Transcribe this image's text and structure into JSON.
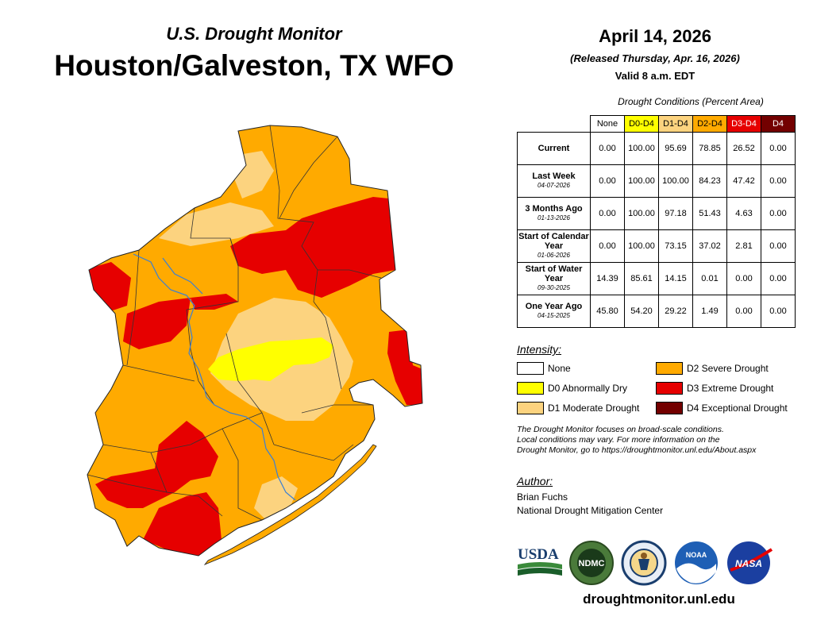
{
  "header": {
    "subtitle": "U.S. Drought Monitor",
    "title": "Houston/Galveston, TX WFO",
    "date": "April 14, 2026",
    "released": "(Released Thursday, Apr. 16, 2026)",
    "valid": "Valid 8 a.m. EDT"
  },
  "table": {
    "caption": "Drought Conditions (Percent Area)",
    "columns": [
      "None",
      "D0-D4",
      "D1-D4",
      "D2-D4",
      "D3-D4",
      "D4"
    ],
    "column_colors": [
      "#ffffff",
      "#ffff00",
      "#fcd37f",
      "#ffaa00",
      "#e60000",
      "#730000"
    ],
    "rows": [
      {
        "label": "Current",
        "date": "",
        "values": [
          "0.00",
          "100.00",
          "95.69",
          "78.85",
          "26.52",
          "0.00"
        ]
      },
      {
        "label": "Last Week",
        "date": "04-07-2026",
        "values": [
          "0.00",
          "100.00",
          "100.00",
          "84.23",
          "47.42",
          "0.00"
        ]
      },
      {
        "label": "3 Months Ago",
        "date": "01-13-2026",
        "values": [
          "0.00",
          "100.00",
          "97.18",
          "51.43",
          "4.63",
          "0.00"
        ]
      },
      {
        "label": "Start of Calendar Year",
        "date": "01-06-2026",
        "values": [
          "0.00",
          "100.00",
          "73.15",
          "37.02",
          "2.81",
          "0.00"
        ]
      },
      {
        "label": "Start of Water Year",
        "date": "09-30-2025",
        "values": [
          "14.39",
          "85.61",
          "14.15",
          "0.01",
          "0.00",
          "0.00"
        ]
      },
      {
        "label": "One Year Ago",
        "date": "04-15-2025",
        "values": [
          "45.80",
          "54.20",
          "29.22",
          "1.49",
          "0.00",
          "0.00"
        ]
      }
    ]
  },
  "legend": {
    "heading": "Intensity:",
    "items": [
      {
        "label": "None",
        "color": "#ffffff"
      },
      {
        "label": "D0 Abnormally Dry",
        "color": "#ffff00"
      },
      {
        "label": "D1 Moderate Drought",
        "color": "#fcd37f"
      },
      {
        "label": "D2 Severe Drought",
        "color": "#ffaa00"
      },
      {
        "label": "D3 Extreme Drought",
        "color": "#e60000"
      },
      {
        "label": "D4 Exceptional Drought",
        "color": "#730000"
      }
    ]
  },
  "note": {
    "line1": "The Drought Monitor focuses on broad-scale conditions.",
    "line2": "Local conditions may vary. For more information on the",
    "line3": "Drought Monitor, go to https://droughtmonitor.unl.edu/About.aspx"
  },
  "author": {
    "heading": "Author:",
    "name": "Brian Fuchs",
    "org": "National Drought Mitigation Center"
  },
  "logos": {
    "usda": "USDA",
    "ndmc": "NDMC",
    "noaa": "NOAA",
    "nasa": "NASA"
  },
  "footer": {
    "site": "droughtmonitor.unl.edu"
  },
  "colors": {
    "d0": "#ffff00",
    "d1": "#fcd37f",
    "d2": "#ffaa00",
    "d3": "#e60000",
    "d4": "#730000",
    "river": "#3a7fd5"
  }
}
